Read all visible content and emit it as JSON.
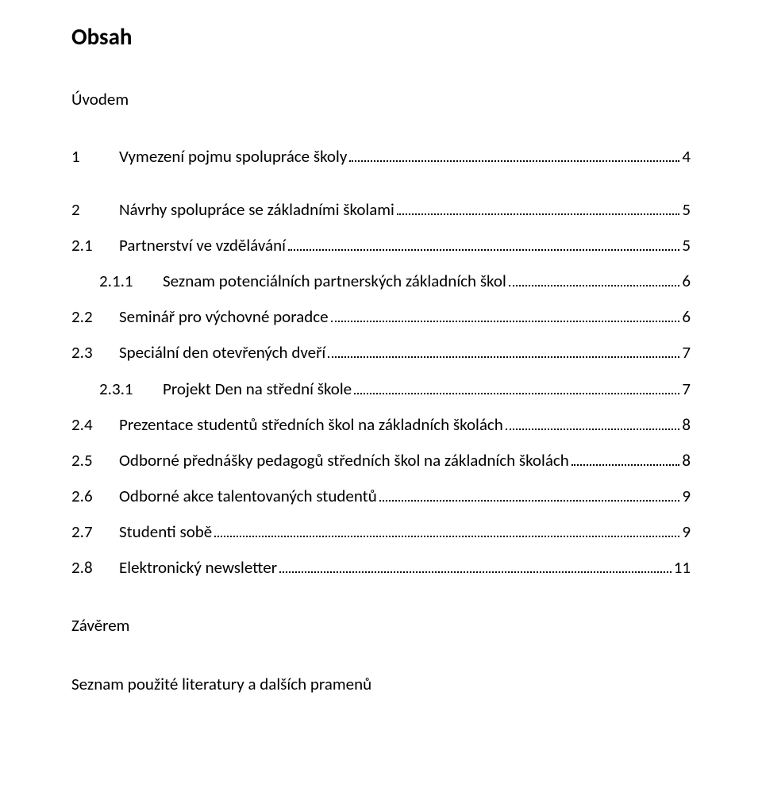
{
  "title": "Obsah",
  "intro": "Úvodem",
  "entries": [
    {
      "level": 0,
      "gap": "lg",
      "num": "1",
      "text": "Vymezení pojmu spolupráce školy",
      "page": "4"
    },
    {
      "level": 0,
      "gap": "lg",
      "num": "2",
      "text": "Návrhy spolupráce se základními školami",
      "page": "5"
    },
    {
      "level": 1,
      "gap": "md",
      "num": "2.1",
      "text": "Partnerství ve vzdělávání",
      "page": "5"
    },
    {
      "level": 2,
      "gap": "md",
      "num": "2.1.1",
      "text": "Seznam potenciálních partnerských základních škol",
      "page": "6"
    },
    {
      "level": 1,
      "gap": "md",
      "num": "2.2",
      "text": "Seminář pro výchovné poradce",
      "page": "6"
    },
    {
      "level": 1,
      "gap": "md",
      "num": "2.3",
      "text": "Speciální den otevřených dveří",
      "page": "7"
    },
    {
      "level": 2,
      "gap": "md",
      "num": "2.3.1",
      "text": "Projekt Den na střední škole",
      "page": "7"
    },
    {
      "level": 1,
      "gap": "md",
      "num": "2.4",
      "text": "Prezentace studentů středních škol na základních školách",
      "page": "8"
    },
    {
      "level": 1,
      "gap": "md",
      "num": "2.5",
      "text": "Odborné přednášky pedagogů středních škol na základních školách",
      "page": "8"
    },
    {
      "level": 1,
      "gap": "md",
      "num": "2.6",
      "text": "Odborné akce talentovaných studentů",
      "page": "9"
    },
    {
      "level": 1,
      "gap": "md",
      "num": "2.7",
      "text": "Studenti sobě",
      "page": "9"
    },
    {
      "level": 1,
      "gap": "md",
      "num": "2.8",
      "text": "Elektronický newsletter",
      "page": "11"
    }
  ],
  "closing": "Závěrem",
  "closing2": "Seznam použité literatury a dalších pramenů"
}
